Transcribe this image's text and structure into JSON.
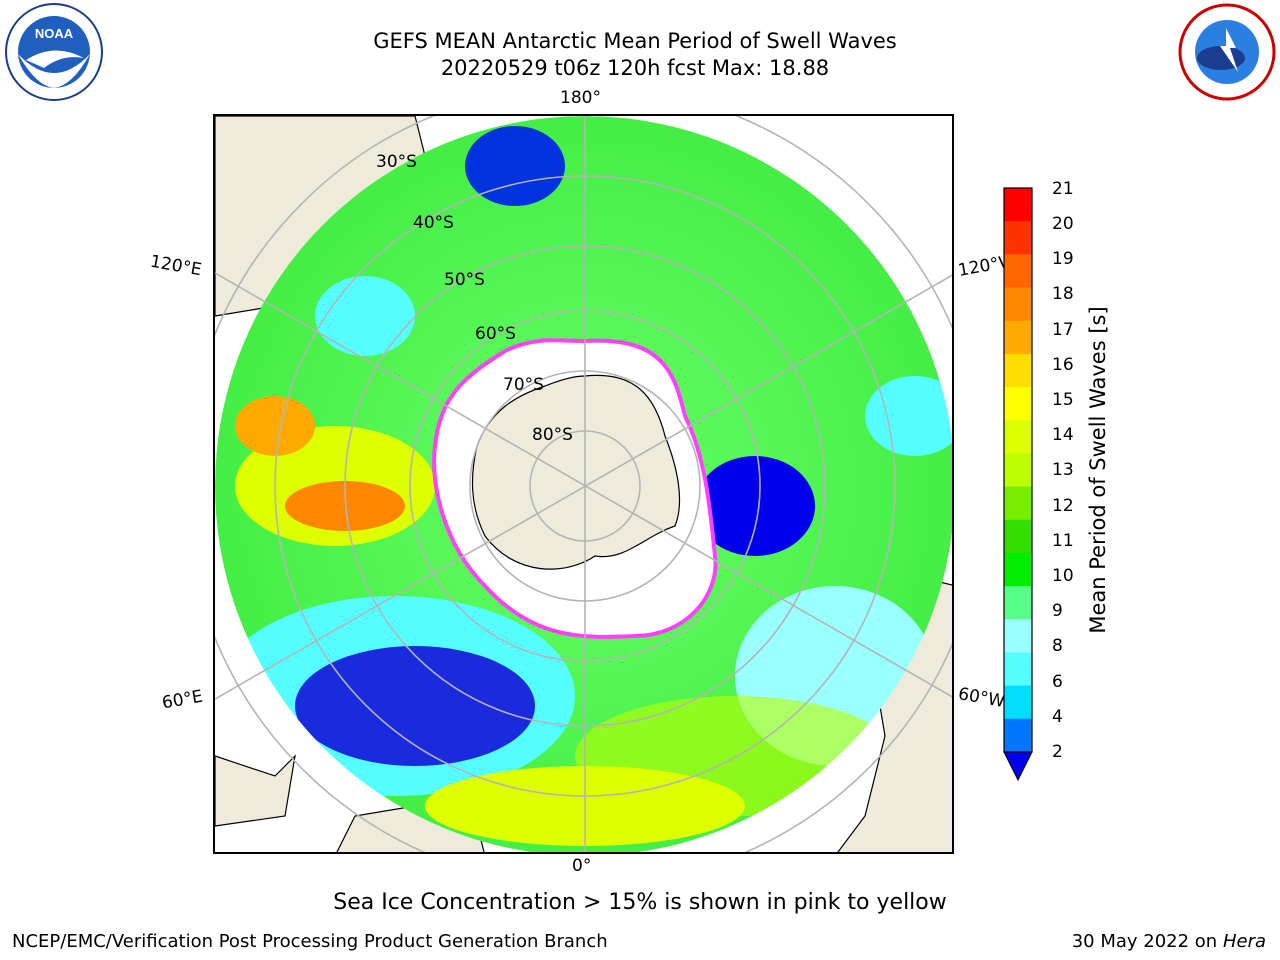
{
  "header": {
    "title_line1": "GEFS MEAN Antarctic Mean Period of Swell Waves",
    "title_line2": "20220529 t06z 120h fcst   Max: 18.88"
  },
  "logos": {
    "left": {
      "icon": "noaa-logo-icon",
      "text": "NOAA"
    },
    "right": {
      "icon": "nws-logo-icon"
    }
  },
  "map": {
    "projection": "south-polar-stereographic",
    "longitude_labels": {
      "top": "180°",
      "bottom": "0°",
      "upper_left": "120°E",
      "upper_right": "120°W",
      "lower_left": "60°E",
      "lower_right": "60°W"
    },
    "latitude_labels": [
      "30°S",
      "40°S",
      "50°S",
      "60°S",
      "70°S",
      "80°S"
    ],
    "colors": {
      "land": "#efebdb",
      "ice_free": "#ffffff",
      "ice_edge": "#ff40ff",
      "gridline": "#b4b4b4"
    }
  },
  "colorbar": {
    "label": "Mean Period of Swell Waves [s]",
    "ticks": [
      "21",
      "20",
      "19",
      "18",
      "17",
      "16",
      "15",
      "14",
      "13",
      "12",
      "11",
      "10",
      "9",
      "8",
      "6",
      "4",
      "2"
    ],
    "colors_top_to_bottom": [
      "#ff0000",
      "#ff3300",
      "#ff6600",
      "#ff8800",
      "#ffaa00",
      "#ffdd00",
      "#ffff00",
      "#ddff00",
      "#bbff00",
      "#77ee00",
      "#33dd00",
      "#00ee00",
      "#55ff88",
      "#99ffff",
      "#55ffff",
      "#00ddff",
      "#0077ff"
    ],
    "extend_color": "#0000ee"
  },
  "caption": "Sea Ice Concentration > 15% is shown in pink to yellow",
  "footer": {
    "left": "NCEP/EMC/Verification Post Processing Product Generation Branch",
    "right_date": "30 May 2022 on",
    "right_host": "Hera"
  }
}
